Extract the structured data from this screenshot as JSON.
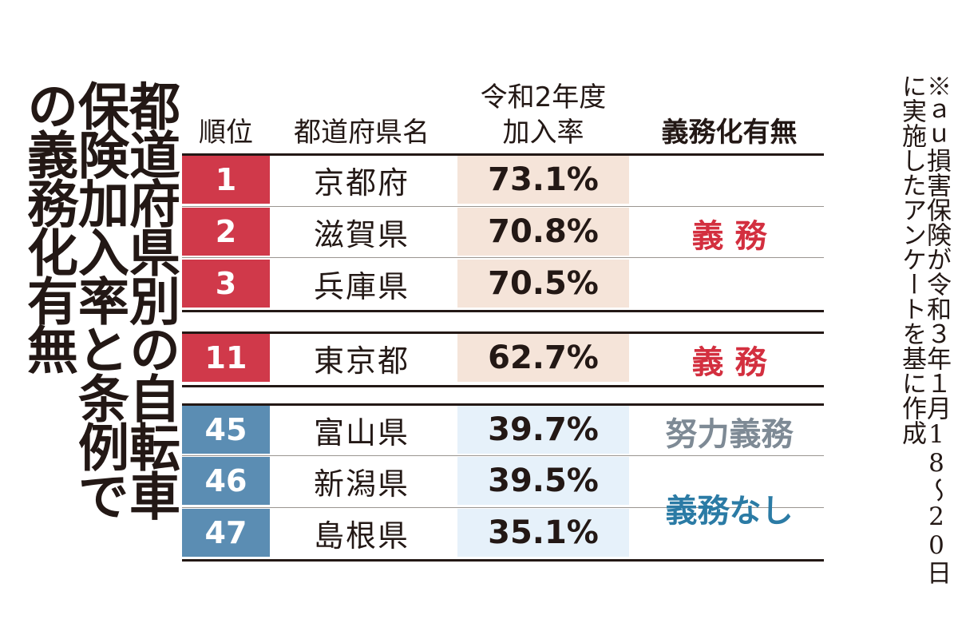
{
  "title": "都道府県別の自転車保険加入率と条例での義務化有無",
  "note": "※ａｕ損害保険が令和３年１月18～20日に実施したアンケートを基に作成",
  "colors": {
    "red": "#d0394a",
    "blue": "#5b8db3",
    "rate_red_bg": "#f5e4d9",
    "rate_blue_bg": "#e6f1fa",
    "obligation_red": "#d32f3f",
    "obligation_gray": "#7e8a95",
    "obligation_blue": "#2b7ba5"
  },
  "chart_data": {
    "type": "table",
    "columns": {
      "rank": "順位",
      "prefecture": "都道府県名",
      "rate_line1": "令和2年度",
      "rate_line2": "加入率",
      "obligation": "義務化有無"
    },
    "rows": [
      {
        "rank": "1",
        "prefecture": "京都府",
        "rate": "73.1%",
        "value": 73.1
      },
      {
        "rank": "2",
        "prefecture": "滋賀県",
        "rate": "70.8%",
        "value": 70.8
      },
      {
        "rank": "3",
        "prefecture": "兵庫県",
        "rate": "70.5%",
        "value": 70.5
      },
      {
        "rank": "11",
        "prefecture": "東京都",
        "rate": "62.7%",
        "value": 62.7
      },
      {
        "rank": "45",
        "prefecture": "富山県",
        "rate": "39.7%",
        "value": 39.7
      },
      {
        "rank": "46",
        "prefecture": "新潟県",
        "rate": "39.5%",
        "value": 39.5
      },
      {
        "rank": "47",
        "prefecture": "島根県",
        "rate": "35.1%",
        "value": 35.1
      }
    ],
    "obligation_groups": [
      {
        "label": "義 務",
        "rows": [
          "1",
          "2",
          "3"
        ]
      },
      {
        "label": "義 務",
        "rows": [
          "11"
        ]
      },
      {
        "label": "努力義務",
        "rows": [
          "45"
        ]
      },
      {
        "label": "義務なし",
        "rows": [
          "46",
          "47"
        ]
      }
    ]
  }
}
